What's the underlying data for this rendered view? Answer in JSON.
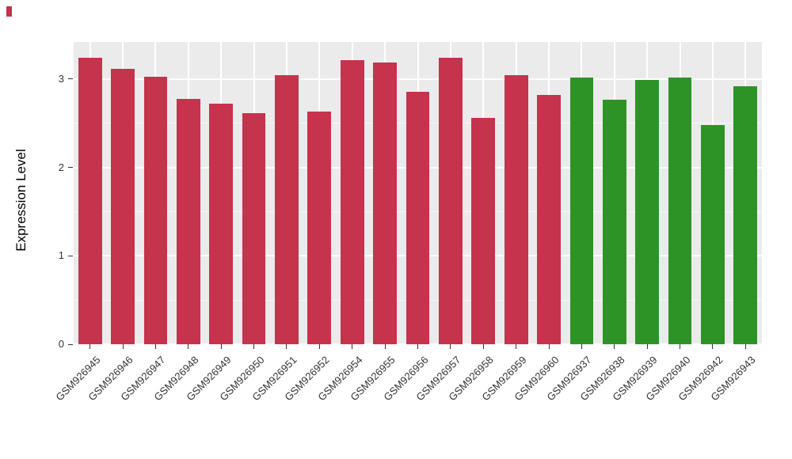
{
  "chart_data": {
    "type": "bar",
    "title": "",
    "xlabel": "",
    "ylabel": "Expression Level",
    "ylim": [
      0,
      3.42
    ],
    "yticks": [
      0,
      1,
      2,
      3
    ],
    "grid": true,
    "legend_position": "none",
    "categories": [
      "GSM926945",
      "GSM926946",
      "GSM926947",
      "GSM926948",
      "GSM926949",
      "GSM926950",
      "GSM926951",
      "GSM926952",
      "GSM926954",
      "GSM926955",
      "GSM926956",
      "GSM926957",
      "GSM926958",
      "GSM926959",
      "GSM926960",
      "GSM926937",
      "GSM926938",
      "GSM926939",
      "GSM926940",
      "GSM926942",
      "GSM926943"
    ],
    "values": [
      3.24,
      3.12,
      3.03,
      2.78,
      2.72,
      2.61,
      3.04,
      2.63,
      3.21,
      3.19,
      2.86,
      3.24,
      2.56,
      3.04,
      2.82,
      3.02,
      2.77,
      2.99,
      3.02,
      2.48,
      2.92
    ],
    "bar_colors": [
      "#C5334D",
      "#C5334D",
      "#C5334D",
      "#C5334D",
      "#C5334D",
      "#C5334D",
      "#C5334D",
      "#C5334D",
      "#C5334D",
      "#C5334D",
      "#C5334D",
      "#C5334D",
      "#C5334D",
      "#C5334D",
      "#C5334D",
      "#2D9327",
      "#2D9327",
      "#2D9327",
      "#2D9327",
      "#2D9327",
      "#2D9327"
    ],
    "group_colors": {
      "group1": "#C5334D",
      "group2": "#2D9327"
    },
    "panel_bg": "#EBEBEB",
    "grid_color": "#FFFFFF",
    "tick_color": "#333333",
    "tick_label_color": "#333333",
    "background": "#FFFFFF",
    "corner_mark_color": "#C5334D"
  }
}
